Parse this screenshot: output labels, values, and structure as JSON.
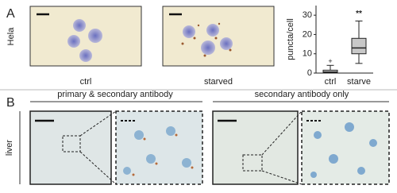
{
  "panel_a": {
    "label": "A",
    "row_label": "Hela",
    "images": [
      "ctrl",
      "starved"
    ]
  },
  "chart_data": {
    "type": "box",
    "y_label": "puncta/cell",
    "categories": [
      "ctrl",
      "starve"
    ],
    "boxes": [
      {
        "min": 0,
        "q1": 0,
        "median": 0.5,
        "q3": 1.5,
        "max": 4,
        "outliers": [
          6
        ]
      },
      {
        "min": 5,
        "q1": 10,
        "median": 13,
        "q3": 18,
        "max": 27,
        "outliers": []
      }
    ],
    "annotation": "**",
    "color": "#c8c8c8",
    "ylim": [
      0,
      35
    ],
    "yticks": [
      0,
      10,
      20,
      30
    ]
  },
  "panel_b": {
    "label": "B",
    "row_label": "liver",
    "groups": [
      "primary & secondary antibody",
      "secondary antibody only"
    ]
  }
}
